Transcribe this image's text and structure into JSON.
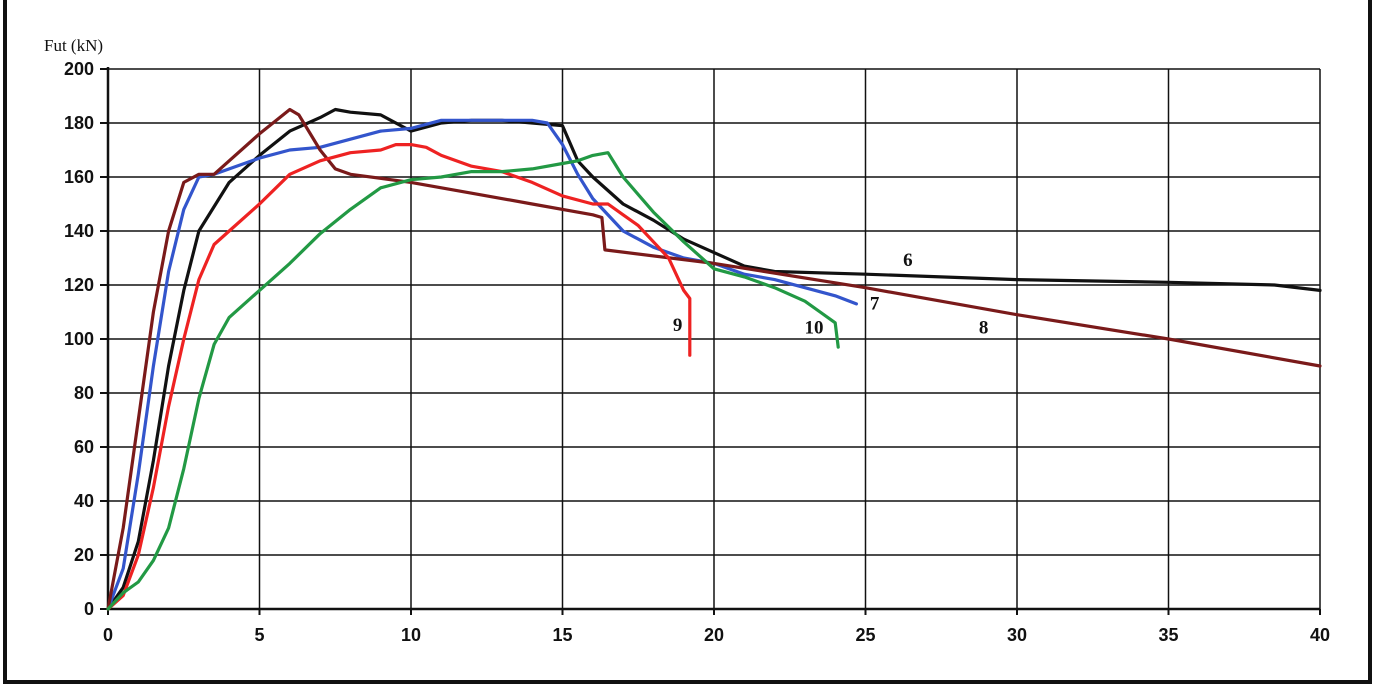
{
  "chart_data": {
    "type": "line",
    "title": "",
    "xlabel": "",
    "ylabel": "Fut  (kN)",
    "xlim": [
      0,
      40
    ],
    "ylim": [
      0,
      200
    ],
    "xticks": [
      "0",
      "5",
      "10",
      "15",
      "20",
      "25",
      "30",
      "35",
      "40"
    ],
    "yticks": [
      "0",
      "20",
      "40",
      "60",
      "80",
      "100",
      "120",
      "140",
      "160",
      "180",
      "200"
    ],
    "grid": true,
    "series": [
      {
        "name": "6",
        "color": "#111111",
        "x": [
          0,
          0.5,
          1.0,
          1.5,
          2.0,
          2.5,
          3.0,
          4.0,
          5.0,
          6.0,
          7.0,
          7.5,
          8.0,
          9.0,
          10.0,
          11.0,
          12.0,
          13.0,
          14.0,
          15.0,
          15.5,
          16.0,
          17.0,
          18.0,
          19.0,
          20.0,
          21.0,
          22.0,
          25.0,
          30.0,
          35.0,
          38.5,
          40.0
        ],
        "y": [
          0,
          8,
          25,
          55,
          90,
          118,
          140,
          158,
          168,
          177,
          182,
          185,
          184,
          183,
          177,
          180,
          181,
          181,
          180,
          179,
          166,
          160,
          150,
          144,
          137,
          132,
          127,
          125,
          124,
          122,
          121,
          120,
          118
        ]
      },
      {
        "name": "7",
        "color": "#3355cc",
        "x": [
          0,
          0.5,
          1.0,
          1.5,
          2.0,
          2.5,
          3.0,
          3.5,
          4.0,
          5.0,
          6.0,
          7.0,
          8.0,
          9.0,
          10.0,
          11.0,
          12.0,
          13.0,
          14.0,
          14.5,
          15.0,
          15.5,
          16.0,
          17.0,
          18.0,
          19.0,
          20.0,
          21.0,
          22.0,
          23.0,
          24.0,
          24.7
        ],
        "y": [
          0,
          15,
          50,
          90,
          125,
          148,
          160,
          161,
          163,
          167,
          170,
          171,
          174,
          177,
          178,
          181,
          181,
          181,
          181,
          180,
          172,
          161,
          152,
          140,
          134,
          130,
          128,
          124,
          122,
          119,
          116,
          113
        ]
      },
      {
        "name": "8",
        "color": "#7a1a1a",
        "x": [
          0,
          0.5,
          1.0,
          1.5,
          2.0,
          2.5,
          3.0,
          3.5,
          4.0,
          5.0,
          6.0,
          6.3,
          7.0,
          7.5,
          8.0,
          10.0,
          12.0,
          14.0,
          16.0,
          16.3,
          16.4,
          20.0,
          25.0,
          30.0,
          35.0,
          40.0
        ],
        "y": [
          0,
          30,
          70,
          110,
          140,
          158,
          161,
          161,
          166,
          176,
          185,
          183,
          170,
          163,
          161,
          158,
          154,
          150,
          146,
          145,
          133,
          128,
          119,
          109,
          100,
          90
        ]
      },
      {
        "name": "9",
        "color": "#ee2222",
        "x": [
          0,
          0.5,
          1.0,
          1.5,
          2.0,
          2.5,
          3.0,
          3.5,
          4.0,
          5.0,
          6.0,
          7.0,
          8.0,
          9.0,
          9.5,
          10.0,
          10.5,
          11.0,
          12.0,
          13.0,
          14.0,
          15.0,
          16.0,
          16.5,
          17.0,
          17.5,
          18.0,
          18.5,
          19.0,
          19.2,
          19.2
        ],
        "y": [
          0,
          5,
          20,
          45,
          75,
          100,
          122,
          135,
          140,
          150,
          161,
          166,
          169,
          170,
          172,
          172,
          171,
          168,
          164,
          162,
          158,
          153,
          150,
          150,
          146,
          142,
          136,
          130,
          118,
          115,
          94
        ]
      },
      {
        "name": "10",
        "color": "#229944",
        "x": [
          0,
          0.5,
          1.0,
          1.5,
          2.0,
          2.5,
          3.0,
          3.5,
          4.0,
          5.0,
          6.0,
          7.0,
          8.0,
          9.0,
          10.0,
          11.0,
          12.0,
          13.0,
          14.0,
          15.0,
          15.5,
          16.0,
          16.5,
          17.0,
          18.0,
          19.0,
          20.0,
          21.0,
          22.0,
          23.0,
          23.5,
          24.0,
          24.1
        ],
        "y": [
          0,
          6,
          10,
          18,
          30,
          52,
          78,
          98,
          108,
          118,
          128,
          139,
          148,
          156,
          159,
          160,
          162,
          162,
          163,
          165,
          166,
          168,
          169,
          160,
          147,
          136,
          126,
          123,
          119,
          114,
          110,
          106,
          97
        ]
      }
    ],
    "annotations": [
      {
        "text": "6",
        "x": 26.4,
        "y": 127
      },
      {
        "text": "7",
        "x": 25.3,
        "y": 111
      },
      {
        "text": "8",
        "x": 28.9,
        "y": 102
      },
      {
        "text": "9",
        "x": 18.8,
        "y": 103
      },
      {
        "text": "10",
        "x": 23.3,
        "y": 102
      }
    ]
  }
}
